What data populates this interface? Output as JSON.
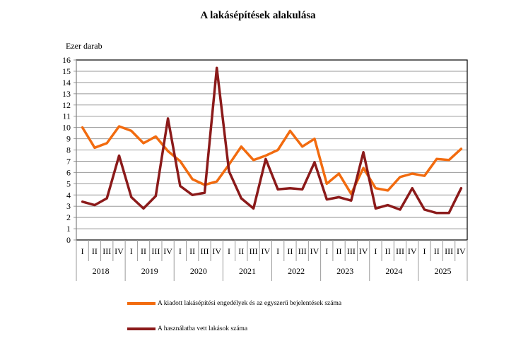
{
  "chart_data": {
    "type": "line",
    "title": "A lakásépítések alakulása",
    "ylabel": "Ezer darab",
    "xlabel": "",
    "ylim": [
      0,
      16
    ],
    "yticks": [
      0,
      1,
      2,
      3,
      4,
      5,
      6,
      7,
      8,
      9,
      10,
      11,
      12,
      13,
      14,
      15,
      16
    ],
    "grid": true,
    "legend_position": "bottom",
    "years": [
      "2018",
      "2019",
      "2020",
      "2021",
      "2022",
      "2023",
      "2024",
      "2025"
    ],
    "quarters": [
      "I",
      "II",
      "III",
      "IV"
    ],
    "categories": [
      "2018 I",
      "2018 II",
      "2018 III",
      "2018 IV",
      "2019 I",
      "2019 II",
      "2019 III",
      "2019 IV",
      "2020 I",
      "2020 II",
      "2020 III",
      "2020 IV",
      "2021 I",
      "2021 II",
      "2021 III",
      "2021 IV",
      "2022 I",
      "2022 II",
      "2022 III",
      "2022 IV",
      "2023 I",
      "2023 II",
      "2023 III",
      "2023 IV",
      "2024 I",
      "2024 II",
      "2024 III",
      "2024 IV",
      "2025 I",
      "2025 II",
      "2025 III",
      "2025 IV"
    ],
    "series": [
      {
        "name": "A kiadott lakásépítési engedélyek és az egyszerű bejelentések száma",
        "color": "#F26B0F",
        "values": [
          10.0,
          8.2,
          8.6,
          10.1,
          9.7,
          8.6,
          9.2,
          7.9,
          7.0,
          5.4,
          4.9,
          5.2,
          6.7,
          8.3,
          7.1,
          7.5,
          8.0,
          9.7,
          8.3,
          9.0,
          5.0,
          5.9,
          4.1,
          6.4,
          4.6,
          4.4,
          5.6,
          5.9,
          5.7,
          7.2,
          7.1,
          8.1
        ]
      },
      {
        "name": "A használatba vett lakások száma",
        "color": "#8B1A1A",
        "values": [
          3.4,
          3.1,
          3.7,
          7.5,
          3.8,
          2.8,
          3.9,
          10.8,
          4.8,
          4.0,
          4.2,
          15.3,
          6.1,
          3.7,
          2.8,
          7.2,
          4.5,
          4.6,
          4.5,
          6.9,
          3.6,
          3.8,
          3.5,
          7.8,
          2.8,
          3.1,
          2.7,
          4.6,
          2.7,
          2.4,
          2.4,
          4.6
        ]
      }
    ]
  }
}
